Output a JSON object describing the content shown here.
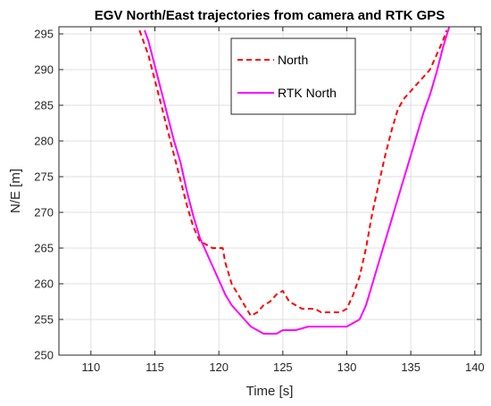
{
  "chart_data": {
    "type": "line",
    "title": "EGV North/East trajectories from camera and RTK GPS",
    "xlabel": "Time [s]",
    "ylabel": "N/E [m]",
    "xlim": [
      107.5,
      140.5
    ],
    "ylim": [
      250,
      296
    ],
    "xticks": [
      "110",
      "115",
      "120",
      "125",
      "130",
      "135",
      "140"
    ],
    "yticks": [
      "250",
      "255",
      "260",
      "265",
      "270",
      "275",
      "280",
      "285",
      "290",
      "295"
    ],
    "grid": true,
    "legend_position": "top-center",
    "series": [
      {
        "name": "North",
        "color": "#ff0000",
        "style": "dashed",
        "x": [
          113.8,
          114.5,
          115.0,
          115.5,
          116.0,
          116.5,
          117.0,
          117.5,
          118.0,
          118.5,
          119.0,
          119.5,
          120.0,
          120.3,
          120.5,
          121.0,
          121.5,
          122.0,
          122.5,
          123.0,
          123.5,
          124.0,
          124.5,
          125.0,
          125.5,
          126.0,
          126.5,
          127.0,
          127.5,
          128.0,
          128.5,
          129.0,
          129.5,
          130.0,
          130.5,
          131.0,
          131.5,
          132.0,
          132.5,
          133.0,
          133.5,
          134.0,
          134.5,
          135.0,
          135.5,
          136.0,
          136.5,
          137.0,
          137.5,
          137.8
        ],
        "y": [
          295.5,
          292.0,
          288.5,
          285.0,
          281.5,
          278.0,
          274.5,
          271.0,
          268.0,
          266.0,
          265.5,
          265.0,
          265.0,
          265.0,
          263.0,
          260.0,
          258.5,
          257.0,
          255.5,
          256.0,
          257.0,
          257.5,
          258.5,
          259.0,
          257.5,
          257.0,
          256.5,
          256.5,
          256.5,
          256.0,
          256.0,
          256.0,
          256.0,
          256.5,
          258.5,
          261.0,
          265.0,
          270.0,
          274.0,
          278.0,
          281.5,
          284.5,
          286.0,
          287.0,
          288.0,
          289.0,
          290.0,
          292.0,
          294.0,
          295.5
        ]
      },
      {
        "name": "RTK North",
        "color": "#ff00ff",
        "style": "solid",
        "x": [
          114.2,
          114.5,
          115.0,
          115.5,
          116.0,
          116.5,
          117.0,
          117.5,
          118.0,
          118.5,
          119.0,
          119.5,
          120.0,
          120.5,
          121.0,
          121.5,
          122.0,
          122.5,
          123.0,
          123.5,
          124.0,
          124.5,
          125.0,
          126.0,
          127.0,
          128.0,
          129.0,
          129.5,
          130.0,
          130.5,
          131.0,
          131.5,
          132.0,
          132.5,
          133.0,
          133.5,
          134.0,
          134.5,
          135.0,
          135.5,
          136.0,
          136.5,
          137.0,
          137.5,
          138.0
        ],
        "y": [
          295.5,
          294.0,
          290.5,
          287.0,
          283.5,
          280.0,
          277.0,
          273.0,
          269.5,
          266.5,
          264.5,
          262.5,
          260.5,
          258.5,
          257.0,
          256.0,
          255.0,
          254.0,
          253.5,
          253.0,
          253.0,
          253.0,
          253.5,
          253.5,
          254.0,
          254.0,
          254.0,
          254.0,
          254.0,
          254.5,
          255.0,
          257.0,
          260.0,
          263.0,
          266.0,
          269.0,
          272.0,
          275.0,
          278.0,
          281.0,
          284.0,
          286.5,
          289.5,
          293.0,
          296.0
        ]
      }
    ]
  }
}
